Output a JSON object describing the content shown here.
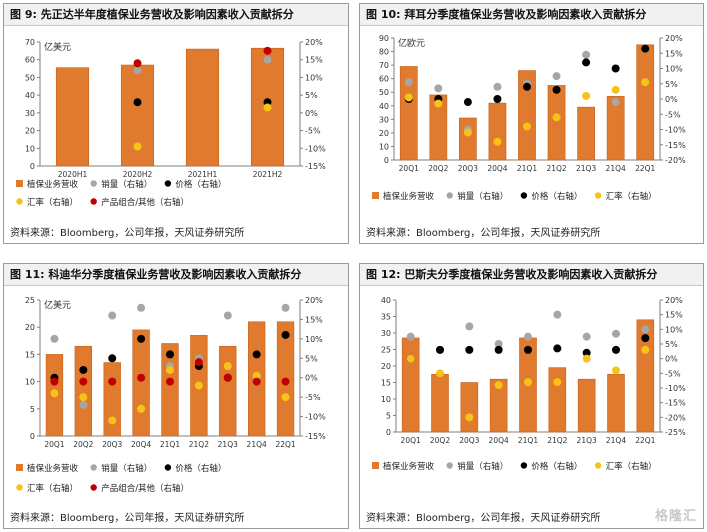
{
  "colors": {
    "bar": "#e07a2e",
    "bar_stroke": "#c6621c",
    "volume": "#a6a6a6",
    "price": "#000000",
    "fx": "#f7c318",
    "mix": "#c00000"
  },
  "panels": [
    {
      "title_prefix": "图 9:",
      "title_text": "先正达半年度植保业务营收及影响因素收入贡献拆分",
      "source": "资料来源：Bloomberg，公司年报，天风证券研究所",
      "chart_data": {
        "type": "bar",
        "unit_label": "亿美元",
        "categories": [
          "2020H1",
          "2020H2",
          "2021H1",
          "2021H2"
        ],
        "ylim": [
          0,
          70
        ],
        "yticks": [
          0,
          10,
          20,
          30,
          40,
          50,
          60,
          70
        ],
        "y2lim": [
          -15,
          20
        ],
        "y2ticks": [
          "-15%",
          "-10%",
          "-5%",
          "0%",
          "5%",
          "10%",
          "15%",
          "20%"
        ],
        "series": [
          {
            "name": "植保业务营收",
            "kind": "bar",
            "axis": "left",
            "values": [
              55.5,
              57,
              66,
              66.5
            ]
          },
          {
            "name": "销量（右轴）",
            "kind": "dot",
            "color_key": "volume",
            "axis": "right",
            "values": [
              null,
              12,
              null,
              15
            ]
          },
          {
            "name": "价格（右轴）",
            "kind": "dot",
            "color_key": "price",
            "axis": "right",
            "values": [
              null,
              3,
              null,
              3
            ]
          },
          {
            "name": "汇率（右轴）",
            "kind": "dot",
            "color_key": "fx",
            "axis": "right",
            "values": [
              null,
              -9.5,
              null,
              1.5
            ]
          },
          {
            "name": "产品组合/其他（右轴）",
            "kind": "dot",
            "color_key": "mix",
            "axis": "right",
            "values": [
              null,
              14,
              null,
              17.5
            ]
          }
        ]
      }
    },
    {
      "title_prefix": "图 10:",
      "title_text": "拜耳分季度植保业务营收及影响因素收入贡献拆分",
      "source": "资料来源：Bloomberg，公司年报，天风证券研究所",
      "chart_data": {
        "type": "bar",
        "unit_label": "亿欧元",
        "categories": [
          "20Q1",
          "20Q2",
          "20Q3",
          "20Q4",
          "21Q1",
          "21Q2",
          "21Q3",
          "21Q4",
          "22Q1"
        ],
        "ylim": [
          0,
          90
        ],
        "yticks": [
          0,
          10,
          20,
          30,
          40,
          50,
          60,
          70,
          80,
          90
        ],
        "y2lim": [
          -20,
          20
        ],
        "y2ticks": [
          "-20%",
          "-15%",
          "-10%",
          "-5%",
          "0%",
          "5%",
          "10%",
          "15%",
          "20%"
        ],
        "series": [
          {
            "name": "植保业务营收",
            "kind": "bar",
            "axis": "left",
            "values": [
              69,
              48,
              31,
              42,
              66,
              55,
              39,
              47,
              85
            ]
          },
          {
            "name": "销量（右轴）",
            "kind": "dot",
            "color_key": "volume",
            "axis": "right",
            "values": [
              5.5,
              3.5,
              -10,
              4,
              5,
              7.5,
              14.5,
              -1,
              16.5
            ]
          },
          {
            "name": "价格（右轴）",
            "kind": "dot",
            "color_key": "price",
            "axis": "right",
            "values": [
              0,
              0,
              -1,
              0,
              4,
              3,
              12,
              10,
              16.5
            ]
          },
          {
            "name": "汇率（右轴）",
            "kind": "dot",
            "color_key": "fx",
            "axis": "right",
            "values": [
              0.5,
              -1.5,
              -11,
              -14,
              -9,
              -6,
              1,
              3,
              5.5
            ]
          }
        ]
      }
    },
    {
      "title_prefix": "图 11:",
      "title_text": "科迪华分季度植保业务营收及影响因素收入贡献拆分",
      "source": "资料来源：Bloomberg，公司年报，天风证券研究所",
      "chart_data": {
        "type": "bar",
        "unit_label": "亿美元",
        "categories": [
          "20Q1",
          "20Q2",
          "20Q3",
          "20Q4",
          "21Q1",
          "21Q2",
          "21Q3",
          "21Q4",
          "22Q1"
        ],
        "ylim": [
          0,
          25
        ],
        "yticks": [
          0,
          5,
          10,
          15,
          20,
          25
        ],
        "y2lim": [
          -15,
          20
        ],
        "y2ticks": [
          "-15%",
          "-10%",
          "-5%",
          "0%",
          "5%",
          "10%",
          "15%",
          "20%"
        ],
        "series": [
          {
            "name": "植保业务营收",
            "kind": "bar",
            "axis": "left",
            "values": [
              15,
              16.5,
              13.5,
              19.5,
              17,
              18.5,
              16.5,
              21,
              21
            ]
          },
          {
            "name": "销量（右轴）",
            "kind": "dot",
            "color_key": "volume",
            "axis": "right",
            "values": [
              10,
              -7,
              16,
              18,
              3,
              5,
              16,
              0,
              18
            ]
          },
          {
            "name": "价格（右轴）",
            "kind": "dot",
            "color_key": "price",
            "axis": "right",
            "values": [
              0,
              2,
              5,
              10,
              6,
              3,
              0,
              6,
              11
            ]
          },
          {
            "name": "汇率（右轴）",
            "kind": "dot",
            "color_key": "fx",
            "axis": "right",
            "values": [
              -4,
              -5,
              -11,
              -8,
              2,
              -2,
              3,
              0.5,
              -5
            ]
          },
          {
            "name": "产品组合/其他（右轴）",
            "kind": "dot",
            "color_key": "mix",
            "axis": "right",
            "values": [
              -1,
              -1,
              -1,
              0,
              -1,
              4,
              0,
              -1,
              -1
            ]
          }
        ]
      }
    },
    {
      "title_prefix": "图 12:",
      "title_text": "巴斯夫分季度植保业务营收及影响因素收入贡献拆分",
      "source": "资料来源：Bloomberg，公司年报，天风证券研究所",
      "chart_data": {
        "type": "bar",
        "unit_label": "",
        "categories": [
          "20Q1",
          "20Q2",
          "20Q3",
          "20Q4",
          "21Q1",
          "21Q2",
          "21Q3",
          "21Q4",
          "22Q1"
        ],
        "ylim": [
          0,
          40
        ],
        "yticks": [
          0,
          5,
          10,
          15,
          20,
          25,
          30,
          35,
          40
        ],
        "y2lim": [
          -25,
          20
        ],
        "y2ticks": [
          "-25%",
          "-20%",
          "-15%",
          "-10%",
          "-5%",
          "0%",
          "5%",
          "10%",
          "15%",
          "20%"
        ],
        "series": [
          {
            "name": "植保业务营收",
            "kind": "bar",
            "axis": "right_scale_left",
            "values": [
              28.5,
              17.5,
              15,
              16,
              28.5,
              19.5,
              16,
              17.5,
              34
            ]
          },
          {
            "name": "销量（右轴）",
            "kind": "dot",
            "color_key": "volume",
            "axis": "right",
            "values": [
              7.5,
              3,
              11,
              5,
              7.5,
              15,
              7.5,
              8.5,
              10
            ]
          },
          {
            "name": "价格（右轴）",
            "kind": "dot",
            "color_key": "price",
            "axis": "right",
            "values": [
              0,
              3,
              3,
              3,
              3,
              3.5,
              2,
              3,
              7
            ]
          },
          {
            "name": "汇率（右轴）",
            "kind": "dot",
            "color_key": "fx",
            "axis": "right",
            "values": [
              0,
              -5,
              -20,
              -9,
              -8,
              -8,
              0,
              -4,
              3
            ]
          }
        ]
      }
    }
  ],
  "legend_rows": [
    [
      {
        "label": "植保业务营收",
        "kind": "bar"
      },
      {
        "label": "销量（右轴）",
        "kind": "dot",
        "color_key": "volume"
      },
      {
        "label": "价格（右轴）",
        "kind": "dot",
        "color_key": "price"
      }
    ],
    [
      {
        "label": "汇率（右轴）",
        "kind": "dot",
        "color_key": "fx"
      },
      {
        "label": "产品组合/其他（右轴）",
        "kind": "dot",
        "color_key": "mix"
      }
    ]
  ],
  "legend_rows_alt": [
    [
      {
        "label": "植保业务营收",
        "kind": "bar"
      },
      {
        "label": "销量（右轴）",
        "kind": "dot",
        "color_key": "volume"
      },
      {
        "label": "价格（右轴）",
        "kind": "dot",
        "color_key": "price"
      },
      {
        "label": "汇率（右轴）",
        "kind": "dot",
        "color_key": "fx"
      }
    ]
  ],
  "watermark": "格隆汇"
}
